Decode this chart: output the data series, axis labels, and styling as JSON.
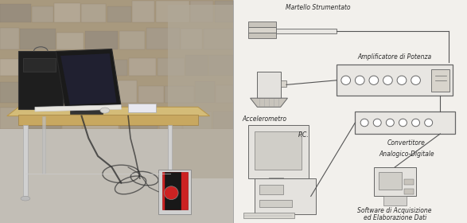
{
  "bg_color": "#f2f0ec",
  "right_bg": "#f5f4f0",
  "line_color": "#555555",
  "text_color": "#2a2a2a",
  "box_edge_color": "#666666",
  "box_face_color": "#e8e6e2",
  "diagram_elements": {
    "hammer_label": "Martello Strumentato",
    "amplifier_label": "Amplificatore di Potenza",
    "accelerometer_label": "Accelerometro",
    "pc_label": "P.C.",
    "adc_label1": "Convertitore",
    "adc_label2": "Analogico-Digitale",
    "software_label1": "Software di Acquisizione",
    "software_label2": "ed Elaborazione Dati"
  },
  "photo": {
    "wall_top": "#b8b0a0",
    "wall_mid": "#a89880",
    "wall_bot_left": "#c0b8a8",
    "floor_color": "#c8c4bc",
    "table_top": "#d4bc78",
    "table_edge": "#c0a060",
    "leg_color": "#cccccc",
    "laptop_dark": "#1a1a1a",
    "speaker_dark": "#252525",
    "keyboard_color": "#e8e6e0",
    "cable_color": "#444444",
    "device_red": "#cc2222",
    "device_dark": "#181818"
  }
}
